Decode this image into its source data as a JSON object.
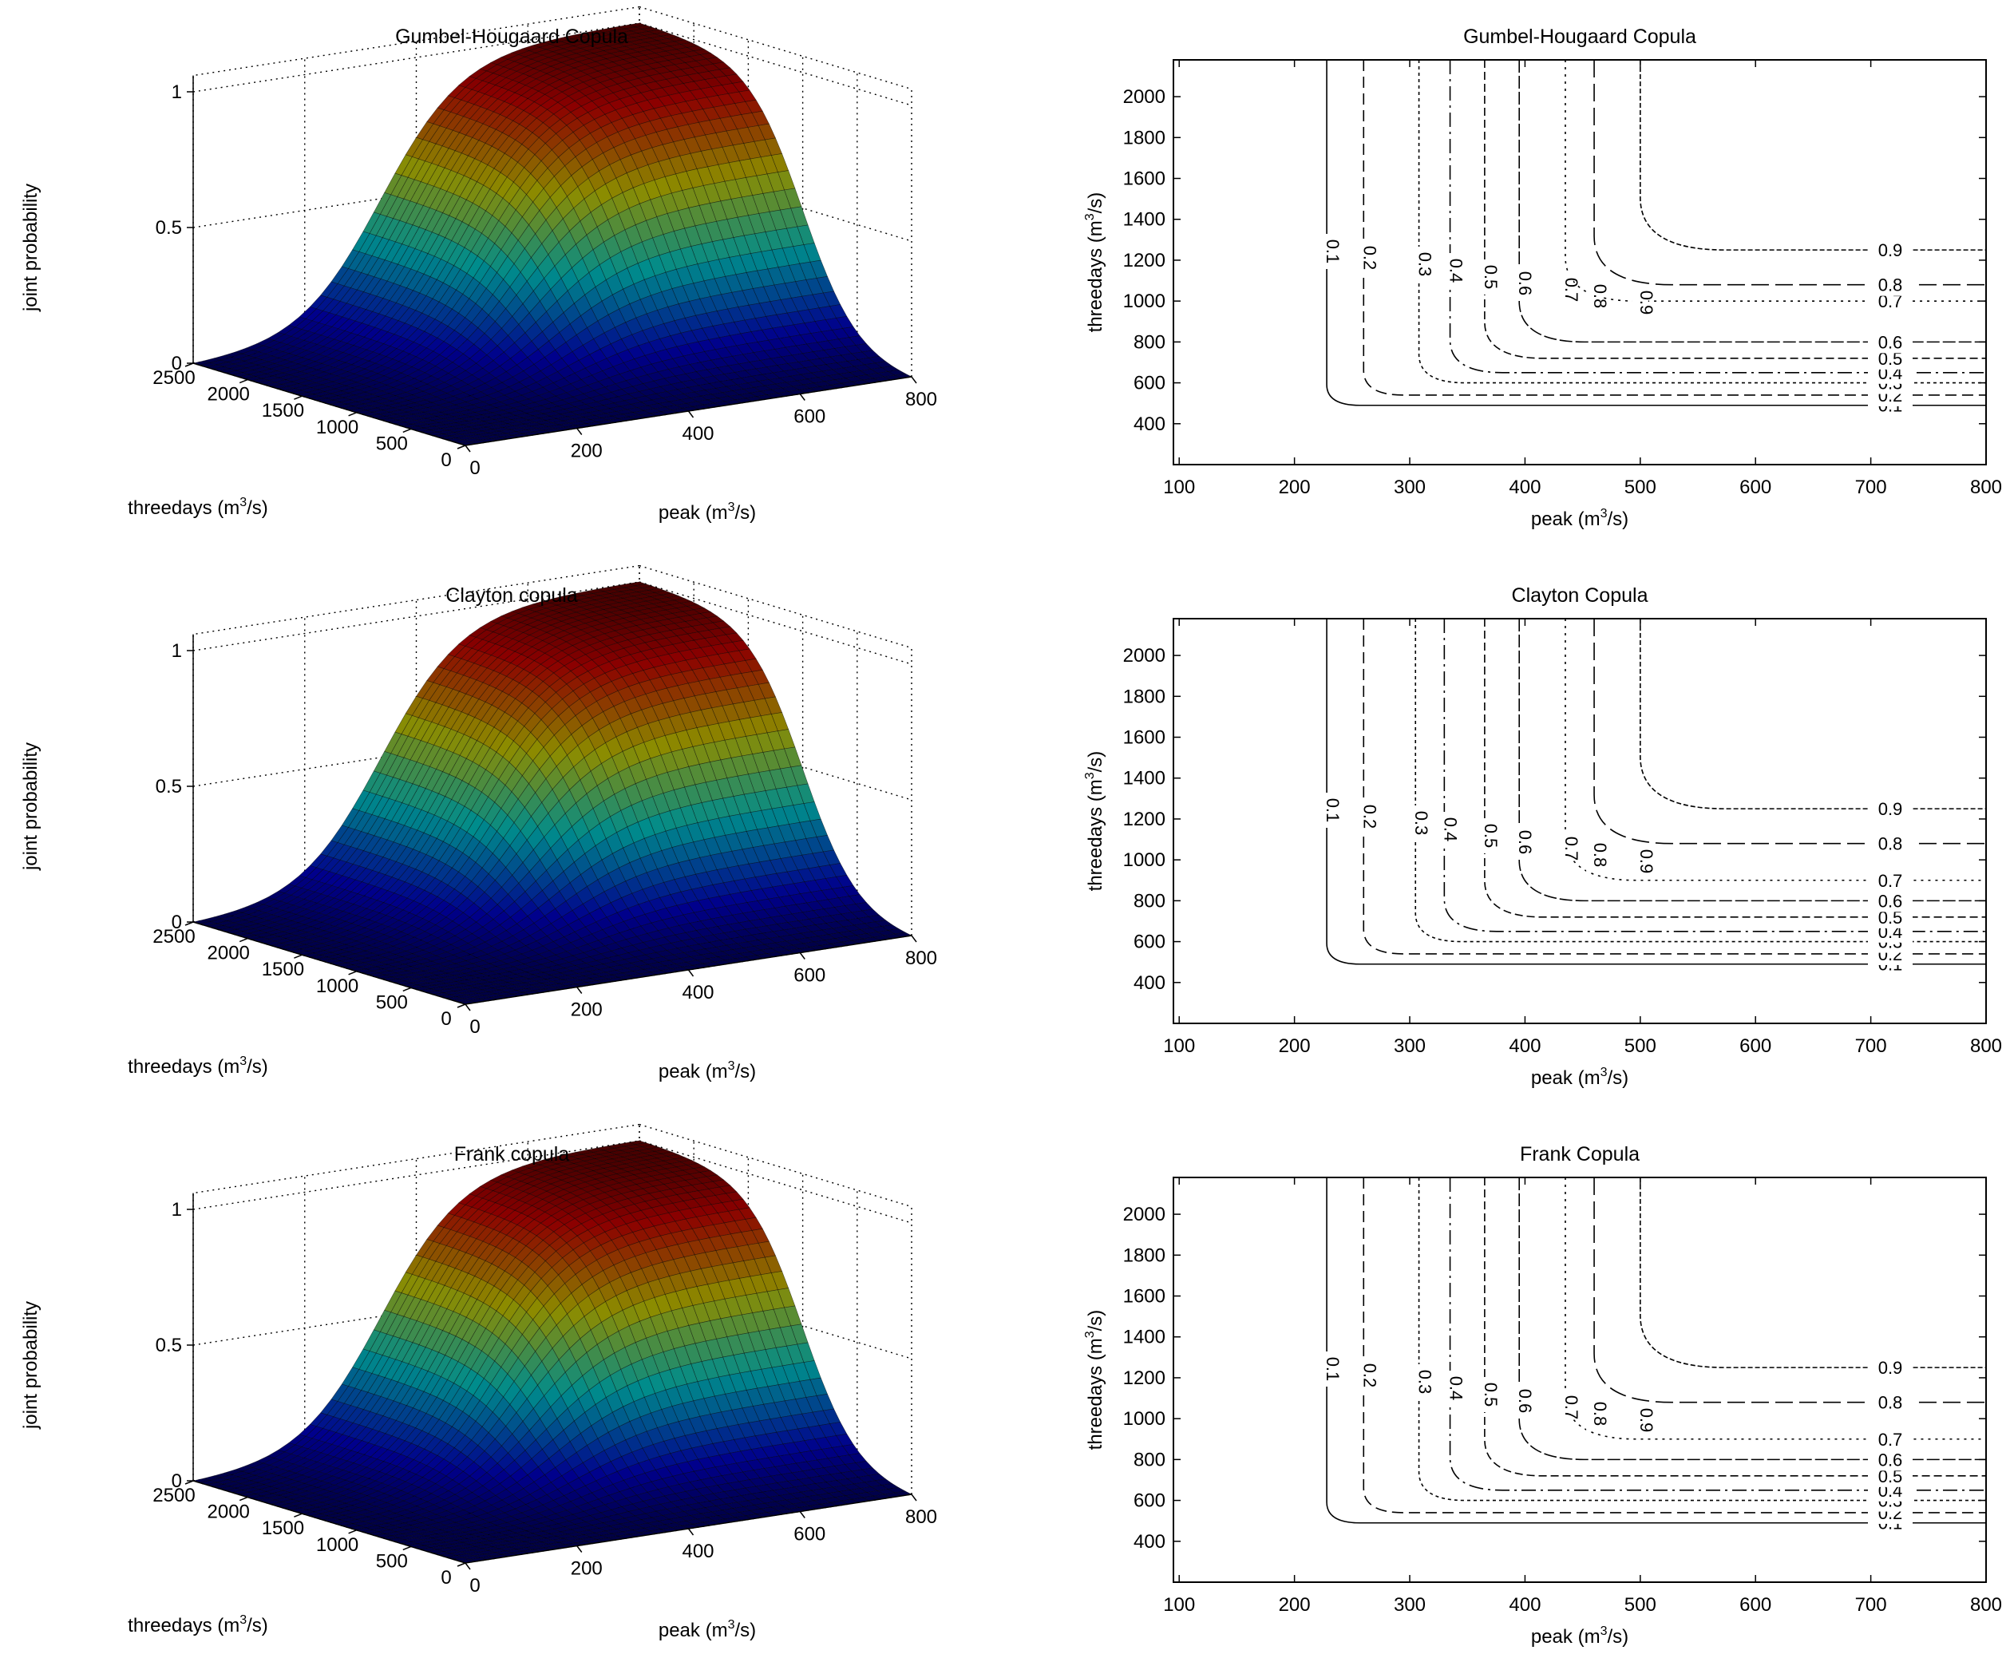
{
  "chart_data": [
    {
      "type": "surface3d",
      "title": "Gumbel-Hougaard Copula",
      "xlabel": "threedays (m",
      "ylabel": "peak (m",
      "unit_sup": "3",
      "unit_suffix": "/s)",
      "zlabel": "joint probability",
      "x_ticks": [
        "2500",
        "2000",
        "1500",
        "1000",
        "500",
        "0"
      ],
      "y_ticks": [
        "0",
        "200",
        "400",
        "600",
        "800"
      ],
      "z_ticks": [
        "0",
        "0.5",
        "1"
      ],
      "xlim": [
        0,
        2500
      ],
      "ylim": [
        0,
        800
      ],
      "zlim": [
        0,
        1
      ],
      "colormap": "jet"
    },
    {
      "type": "contour",
      "title": "Gumbel-Hougaard Copula",
      "xlabel": "peak (m",
      "ylabel": "threedays (m",
      "unit_sup": "3",
      "unit_suffix": "/s)",
      "x_ticks": [
        "100",
        "200",
        "300",
        "400",
        "500",
        "600",
        "700",
        "800"
      ],
      "y_ticks": [
        "400",
        "600",
        "800",
        "1000",
        "1200",
        "1400",
        "1600",
        "1800",
        "2000"
      ],
      "xlim": [
        95,
        800
      ],
      "ylim": [
        200,
        2180
      ],
      "levels": [
        {
          "label": "0.1",
          "vx": 228,
          "hy": 490
        },
        {
          "label": "0.2",
          "vx": 260,
          "hy": 540
        },
        {
          "label": "0.3",
          "vx": 308,
          "hy": 600
        },
        {
          "label": "0.4",
          "vx": 335,
          "hy": 650
        },
        {
          "label": "0.5",
          "vx": 365,
          "hy": 720
        },
        {
          "label": "0.6",
          "vx": 395,
          "hy": 800
        },
        {
          "label": "0.7",
          "vx": 435,
          "hy": 1000
        },
        {
          "label": "0.8",
          "vx": 460,
          "hy": 1080
        },
        {
          "label": "0.9",
          "vx": 500,
          "hy": 1250
        }
      ]
    },
    {
      "type": "surface3d",
      "title": "Clayton copula",
      "xlabel": "threedays (m",
      "ylabel": "peak (m",
      "unit_sup": "3",
      "unit_suffix": "/s)",
      "zlabel": "joint probability",
      "x_ticks": [
        "2500",
        "2000",
        "1500",
        "1000",
        "500",
        "0"
      ],
      "y_ticks": [
        "0",
        "200",
        "400",
        "600",
        "800"
      ],
      "z_ticks": [
        "0",
        "0.5",
        "1"
      ],
      "xlim": [
        0,
        2500
      ],
      "ylim": [
        0,
        800
      ],
      "zlim": [
        0,
        1
      ],
      "colormap": "jet"
    },
    {
      "type": "contour",
      "title": "Clayton Copula",
      "xlabel": "peak (m",
      "ylabel": "threedays (m",
      "unit_sup": "3",
      "unit_suffix": "/s)",
      "x_ticks": [
        "100",
        "200",
        "300",
        "400",
        "500",
        "600",
        "700",
        "800"
      ],
      "y_ticks": [
        "400",
        "600",
        "800",
        "1000",
        "1200",
        "1400",
        "1600",
        "1800",
        "2000"
      ],
      "xlim": [
        95,
        800
      ],
      "ylim": [
        200,
        2180
      ],
      "levels": [
        {
          "label": "0.1",
          "vx": 228,
          "hy": 490
        },
        {
          "label": "0.2",
          "vx": 260,
          "hy": 540
        },
        {
          "label": "0.3",
          "vx": 305,
          "hy": 600
        },
        {
          "label": "0.4",
          "vx": 330,
          "hy": 650
        },
        {
          "label": "0.5",
          "vx": 365,
          "hy": 720
        },
        {
          "label": "0.6",
          "vx": 395,
          "hy": 800
        },
        {
          "label": "0.7",
          "vx": 435,
          "hy": 900
        },
        {
          "label": "0.8",
          "vx": 460,
          "hy": 1080
        },
        {
          "label": "0.9",
          "vx": 500,
          "hy": 1250
        }
      ]
    },
    {
      "type": "surface3d",
      "title": "Frank copula",
      "xlabel": "threedays (m",
      "ylabel": "peak (m",
      "unit_sup": "3",
      "unit_suffix": "/s)",
      "zlabel": "joint probability",
      "x_ticks": [
        "2500",
        "2000",
        "1500",
        "1000",
        "500",
        "0"
      ],
      "y_ticks": [
        "0",
        "200",
        "400",
        "600",
        "800"
      ],
      "z_ticks": [
        "0",
        "0.5",
        "1"
      ],
      "xlim": [
        0,
        2500
      ],
      "ylim": [
        0,
        800
      ],
      "zlim": [
        0,
        1
      ],
      "colormap": "jet"
    },
    {
      "type": "contour",
      "title": "Frank Copula",
      "xlabel": "peak (m",
      "ylabel": "threedays (m",
      "unit_sup": "3",
      "unit_suffix": "/s)",
      "x_ticks": [
        "100",
        "200",
        "300",
        "400",
        "500",
        "600",
        "700",
        "800"
      ],
      "y_ticks": [
        "400",
        "600",
        "800",
        "1000",
        "1200",
        "1400",
        "1600",
        "1800",
        "2000"
      ],
      "xlim": [
        95,
        800
      ],
      "ylim": [
        200,
        2180
      ],
      "levels": [
        {
          "label": "0.1",
          "vx": 228,
          "hy": 490
        },
        {
          "label": "0.2",
          "vx": 260,
          "hy": 540
        },
        {
          "label": "0.3",
          "vx": 308,
          "hy": 600
        },
        {
          "label": "0.4",
          "vx": 335,
          "hy": 650
        },
        {
          "label": "0.5",
          "vx": 365,
          "hy": 720
        },
        {
          "label": "0.6",
          "vx": 395,
          "hy": 800
        },
        {
          "label": "0.7",
          "vx": 435,
          "hy": 900
        },
        {
          "label": "0.8",
          "vx": 460,
          "hy": 1080
        },
        {
          "label": "0.9",
          "vx": 500,
          "hy": 1250
        }
      ]
    }
  ]
}
